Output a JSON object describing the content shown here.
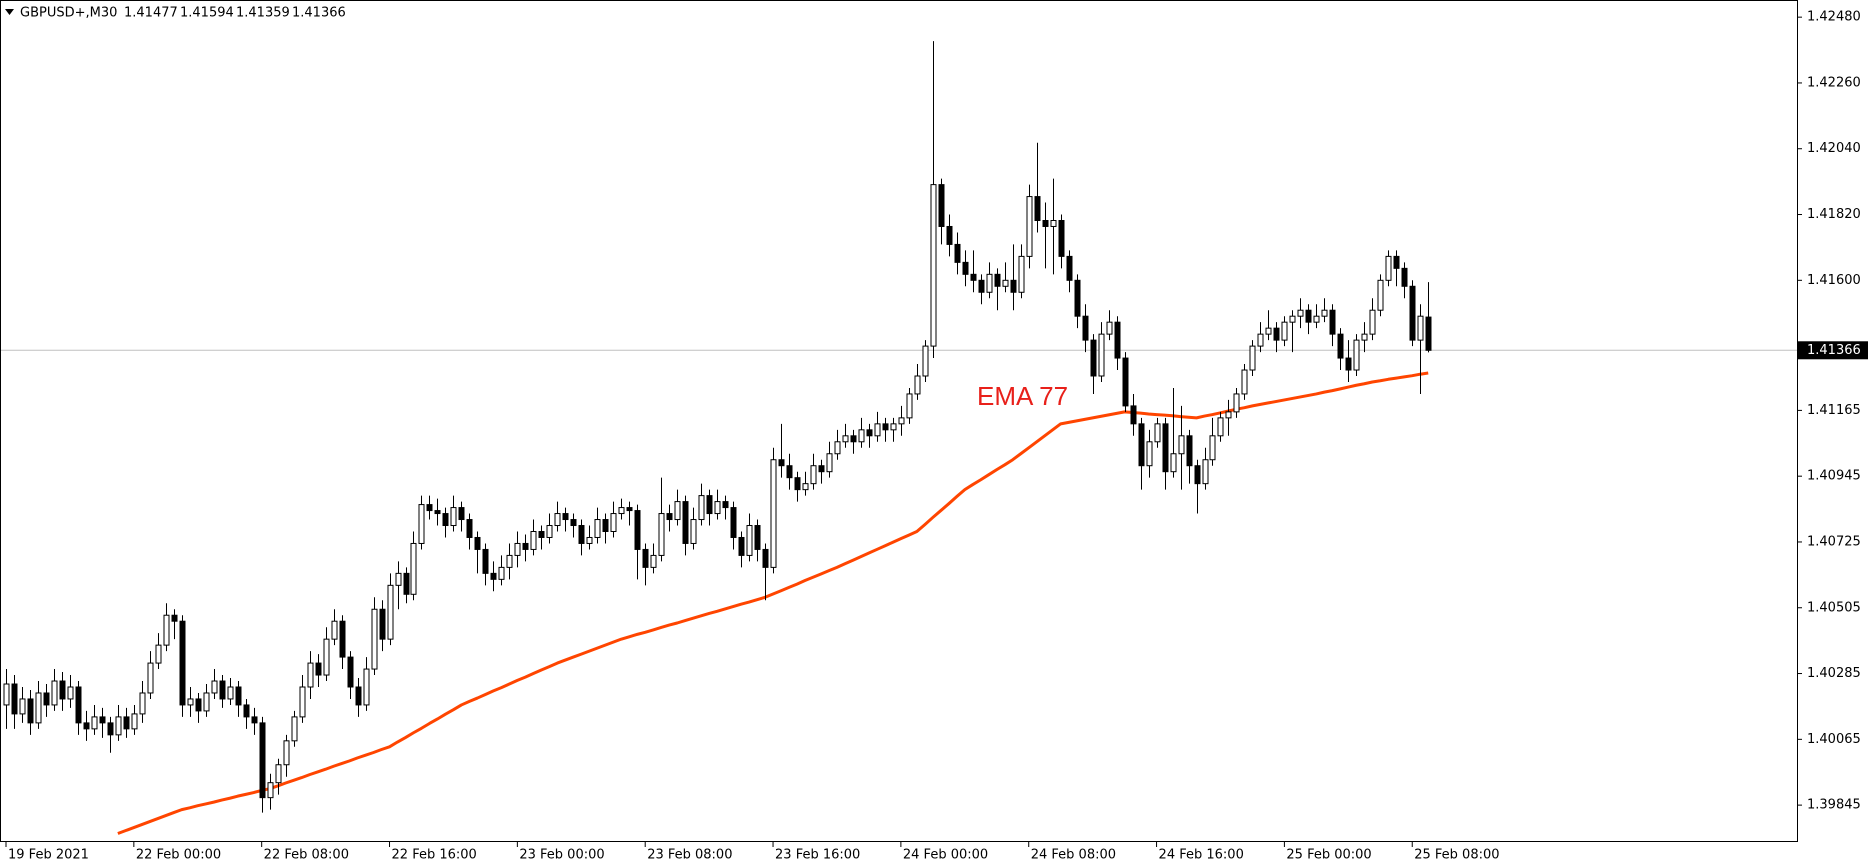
{
  "chart_data": {
    "type": "candlestick",
    "symbol": "GBPUSD+,M30",
    "up_color": "#ffffff",
    "down_color": "#000000",
    "last_price_line": true,
    "candles": [
      [
        1.4018,
        1.403,
        1.401,
        1.4025
      ],
      [
        1.4025,
        1.4028,
        1.401,
        1.4015
      ],
      [
        1.4015,
        1.4024,
        1.4012,
        1.402
      ],
      [
        1.402,
        1.4023,
        1.4008,
        1.4012
      ],
      [
        1.4012,
        1.4026,
        1.401,
        1.4022
      ],
      [
        1.4022,
        1.4025,
        1.4014,
        1.4018
      ],
      [
        1.4018,
        1.403,
        1.4016,
        1.4026
      ],
      [
        1.4026,
        1.4029,
        1.4016,
        1.402
      ],
      [
        1.402,
        1.4028,
        1.4017,
        1.4024
      ],
      [
        1.4024,
        1.4026,
        1.4008,
        1.4012
      ],
      [
        1.4012,
        1.4016,
        1.4006,
        1.401
      ],
      [
        1.401,
        1.4018,
        1.4008,
        1.4014
      ],
      [
        1.4014,
        1.4017,
        1.4007,
        1.4012
      ],
      [
        1.4012,
        1.4014,
        1.4002,
        1.4008
      ],
      [
        1.4008,
        1.4018,
        1.4006,
        1.4014
      ],
      [
        1.4014,
        1.4017,
        1.4007,
        1.401
      ],
      [
        1.401,
        1.4018,
        1.4008,
        1.4015
      ],
      [
        1.4015,
        1.4026,
        1.4012,
        1.4022
      ],
      [
        1.4022,
        1.4036,
        1.402,
        1.4032
      ],
      [
        1.4032,
        1.4042,
        1.403,
        1.4038
      ],
      [
        1.4038,
        1.4052,
        1.4036,
        1.4048
      ],
      [
        1.4048,
        1.405,
        1.404,
        1.4046
      ],
      [
        1.4046,
        1.4048,
        1.4014,
        1.4018
      ],
      [
        1.4018,
        1.4024,
        1.4014,
        1.402
      ],
      [
        1.402,
        1.4022,
        1.4012,
        1.4016
      ],
      [
        1.4016,
        1.4025,
        1.4014,
        1.4022
      ],
      [
        1.4022,
        1.403,
        1.402,
        1.4026
      ],
      [
        1.4026,
        1.4028,
        1.4017,
        1.402
      ],
      [
        1.402,
        1.4027,
        1.4018,
        1.4024
      ],
      [
        1.4024,
        1.4026,
        1.4014,
        1.4018
      ],
      [
        1.4018,
        1.402,
        1.401,
        1.4014
      ],
      [
        1.4014,
        1.4017,
        1.4008,
        1.4012
      ],
      [
        1.4012,
        1.4014,
        1.3982,
        1.3987
      ],
      [
        1.3987,
        1.3995,
        1.3983,
        1.3992
      ],
      [
        1.3992,
        1.4,
        1.3988,
        1.3998
      ],
      [
        1.3998,
        1.4008,
        1.3994,
        1.4006
      ],
      [
        1.4006,
        1.4016,
        1.4004,
        1.4014
      ],
      [
        1.4014,
        1.4028,
        1.4012,
        1.4024
      ],
      [
        1.4024,
        1.4036,
        1.402,
        1.4032
      ],
      [
        1.4032,
        1.4035,
        1.4024,
        1.4028
      ],
      [
        1.4028,
        1.4044,
        1.4026,
        1.404
      ],
      [
        1.404,
        1.405,
        1.4038,
        1.4046
      ],
      [
        1.4046,
        1.4048,
        1.403,
        1.4034
      ],
      [
        1.4034,
        1.4036,
        1.402,
        1.4024
      ],
      [
        1.4024,
        1.4027,
        1.4014,
        1.4018
      ],
      [
        1.4018,
        1.4034,
        1.4016,
        1.403
      ],
      [
        1.403,
        1.4054,
        1.4028,
        1.405
      ],
      [
        1.405,
        1.4053,
        1.4036,
        1.404
      ],
      [
        1.404,
        1.4062,
        1.4038,
        1.4058
      ],
      [
        1.4058,
        1.4066,
        1.405,
        1.4062
      ],
      [
        1.4062,
        1.4064,
        1.4052,
        1.4055
      ],
      [
        1.4055,
        1.4076,
        1.4053,
        1.4072
      ],
      [
        1.4072,
        1.4088,
        1.407,
        1.4085
      ],
      [
        1.4085,
        1.4088,
        1.408,
        1.4083
      ],
      [
        1.4083,
        1.4087,
        1.4078,
        1.4082
      ],
      [
        1.4082,
        1.4084,
        1.4074,
        1.4078
      ],
      [
        1.4078,
        1.4088,
        1.4076,
        1.4084
      ],
      [
        1.4084,
        1.4086,
        1.4076,
        1.408
      ],
      [
        1.408,
        1.4082,
        1.407,
        1.4074
      ],
      [
        1.4074,
        1.4076,
        1.4062,
        1.407
      ],
      [
        1.407,
        1.4072,
        1.4058,
        1.4062
      ],
      [
        1.4062,
        1.4066,
        1.4056,
        1.406
      ],
      [
        1.406,
        1.4068,
        1.4058,
        1.4064
      ],
      [
        1.4064,
        1.4072,
        1.406,
        1.4068
      ],
      [
        1.4068,
        1.4076,
        1.4064,
        1.4072
      ],
      [
        1.4072,
        1.4075,
        1.4066,
        1.407
      ],
      [
        1.407,
        1.408,
        1.4068,
        1.4076
      ],
      [
        1.4076,
        1.4078,
        1.407,
        1.4074
      ],
      [
        1.4074,
        1.4082,
        1.4072,
        1.4078
      ],
      [
        1.4078,
        1.4086,
        1.4076,
        1.4082
      ],
      [
        1.4082,
        1.4084,
        1.4076,
        1.408
      ],
      [
        1.408,
        1.4082,
        1.4074,
        1.4078
      ],
      [
        1.4078,
        1.408,
        1.4068,
        1.4072
      ],
      [
        1.4072,
        1.4078,
        1.407,
        1.4074
      ],
      [
        1.4074,
        1.4084,
        1.4072,
        1.408
      ],
      [
        1.408,
        1.4082,
        1.4072,
        1.4076
      ],
      [
        1.4076,
        1.4086,
        1.4074,
        1.4082
      ],
      [
        1.4082,
        1.4087,
        1.408,
        1.4084
      ],
      [
        1.4084,
        1.4086,
        1.4078,
        1.4083
      ],
      [
        1.4083,
        1.4085,
        1.406,
        1.407
      ],
      [
        1.407,
        1.4072,
        1.4058,
        1.4064
      ],
      [
        1.4064,
        1.4072,
        1.4062,
        1.4068
      ],
      [
        1.4068,
        1.4094,
        1.4066,
        1.4082
      ],
      [
        1.4082,
        1.4085,
        1.4076,
        1.408
      ],
      [
        1.408,
        1.409,
        1.4078,
        1.4086
      ],
      [
        1.4086,
        1.4088,
        1.4068,
        1.4072
      ],
      [
        1.4072,
        1.4084,
        1.407,
        1.408
      ],
      [
        1.408,
        1.4092,
        1.4078,
        1.4088
      ],
      [
        1.4088,
        1.409,
        1.4078,
        1.4082
      ],
      [
        1.4082,
        1.409,
        1.408,
        1.4086
      ],
      [
        1.4086,
        1.4088,
        1.408,
        1.4084
      ],
      [
        1.4084,
        1.4086,
        1.407,
        1.4074
      ],
      [
        1.4074,
        1.4076,
        1.4064,
        1.4068
      ],
      [
        1.4068,
        1.4082,
        1.4066,
        1.4078
      ],
      [
        1.4078,
        1.408,
        1.4066,
        1.407
      ],
      [
        1.407,
        1.4072,
        1.4053,
        1.4064
      ],
      [
        1.4064,
        1.4104,
        1.4062,
        1.41
      ],
      [
        1.41,
        1.4112,
        1.4094,
        1.4098
      ],
      [
        1.4098,
        1.4102,
        1.409,
        1.4094
      ],
      [
        1.4094,
        1.4096,
        1.4086,
        1.409
      ],
      [
        1.409,
        1.4096,
        1.4088,
        1.4092
      ],
      [
        1.4092,
        1.4102,
        1.409,
        1.4098
      ],
      [
        1.4098,
        1.41,
        1.4092,
        1.4096
      ],
      [
        1.4096,
        1.4106,
        1.4094,
        1.4102
      ],
      [
        1.4102,
        1.411,
        1.41,
        1.4106
      ],
      [
        1.4106,
        1.4112,
        1.4104,
        1.4108
      ],
      [
        1.4108,
        1.411,
        1.4102,
        1.4106
      ],
      [
        1.4106,
        1.4114,
        1.4104,
        1.411
      ],
      [
        1.411,
        1.4112,
        1.4104,
        1.4108
      ],
      [
        1.4108,
        1.4116,
        1.4106,
        1.4112
      ],
      [
        1.4112,
        1.4114,
        1.4106,
        1.411
      ],
      [
        1.411,
        1.4114,
        1.4106,
        1.4112
      ],
      [
        1.4112,
        1.4118,
        1.4108,
        1.4114
      ],
      [
        1.4114,
        1.4124,
        1.4112,
        1.4122
      ],
      [
        1.4122,
        1.4132,
        1.412,
        1.4128
      ],
      [
        1.4128,
        1.414,
        1.4126,
        1.4138
      ],
      [
        1.4138,
        1.424,
        1.4134,
        1.4192
      ],
      [
        1.4192,
        1.4194,
        1.4172,
        1.4178
      ],
      [
        1.4178,
        1.4182,
        1.4168,
        1.4172
      ],
      [
        1.4172,
        1.4176,
        1.4162,
        1.4166
      ],
      [
        1.4166,
        1.417,
        1.4158,
        1.4162
      ],
      [
        1.4162,
        1.417,
        1.4156,
        1.416
      ],
      [
        1.416,
        1.4162,
        1.4152,
        1.4156
      ],
      [
        1.4156,
        1.4166,
        1.4154,
        1.4162
      ],
      [
        1.4162,
        1.4164,
        1.415,
        1.4158
      ],
      [
        1.4158,
        1.4166,
        1.4156,
        1.416
      ],
      [
        1.416,
        1.4172,
        1.415,
        1.4156
      ],
      [
        1.4156,
        1.4172,
        1.4154,
        1.4168
      ],
      [
        1.4168,
        1.4192,
        1.4164,
        1.4188
      ],
      [
        1.4188,
        1.4206,
        1.4176,
        1.418
      ],
      [
        1.418,
        1.4186,
        1.4164,
        1.4178
      ],
      [
        1.4178,
        1.4194,
        1.4162,
        1.418
      ],
      [
        1.418,
        1.4182,
        1.4164,
        1.4168
      ],
      [
        1.4168,
        1.417,
        1.4156,
        1.416
      ],
      [
        1.416,
        1.4162,
        1.4144,
        1.4148
      ],
      [
        1.4148,
        1.4152,
        1.4136,
        1.414
      ],
      [
        1.414,
        1.4142,
        1.4122,
        1.4128
      ],
      [
        1.4128,
        1.4146,
        1.4126,
        1.4142
      ],
      [
        1.4142,
        1.415,
        1.414,
        1.4146
      ],
      [
        1.4146,
        1.4148,
        1.413,
        1.4134
      ],
      [
        1.4134,
        1.4136,
        1.4116,
        1.4118
      ],
      [
        1.4118,
        1.4122,
        1.4108,
        1.4112
      ],
      [
        1.4112,
        1.4114,
        1.409,
        1.4098
      ],
      [
        1.4098,
        1.411,
        1.4094,
        1.4106
      ],
      [
        1.4106,
        1.4114,
        1.4104,
        1.4112
      ],
      [
        1.4112,
        1.4114,
        1.409,
        1.4096
      ],
      [
        1.4096,
        1.4124,
        1.4094,
        1.4102
      ],
      [
        1.4102,
        1.4118,
        1.409,
        1.4108
      ],
      [
        1.4108,
        1.411,
        1.4092,
        1.4098
      ],
      [
        1.4098,
        1.41,
        1.4082,
        1.4092
      ],
      [
        1.4092,
        1.4104,
        1.409,
        1.41
      ],
      [
        1.41,
        1.4114,
        1.4098,
        1.4108
      ],
      [
        1.4108,
        1.4116,
        1.4106,
        1.4114
      ],
      [
        1.4114,
        1.412,
        1.4108,
        1.4116
      ],
      [
        1.4116,
        1.4124,
        1.4114,
        1.4122
      ],
      [
        1.4122,
        1.4132,
        1.412,
        1.413
      ],
      [
        1.413,
        1.414,
        1.4128,
        1.4138
      ],
      [
        1.4138,
        1.4146,
        1.4136,
        1.4142
      ],
      [
        1.4142,
        1.415,
        1.414,
        1.4144
      ],
      [
        1.4144,
        1.4146,
        1.4136,
        1.414
      ],
      [
        1.414,
        1.4148,
        1.4138,
        1.4146
      ],
      [
        1.4146,
        1.415,
        1.4136,
        1.4148
      ],
      [
        1.4148,
        1.4154,
        1.4144,
        1.415
      ],
      [
        1.415,
        1.4152,
        1.4142,
        1.4146
      ],
      [
        1.4146,
        1.4152,
        1.4144,
        1.4148
      ],
      [
        1.4148,
        1.4154,
        1.4146,
        1.415
      ],
      [
        1.415,
        1.4152,
        1.4138,
        1.4142
      ],
      [
        1.4142,
        1.4144,
        1.413,
        1.4134
      ],
      [
        1.4134,
        1.414,
        1.4126,
        1.413
      ],
      [
        1.413,
        1.4142,
        1.4128,
        1.414
      ],
      [
        1.414,
        1.4146,
        1.4136,
        1.4142
      ],
      [
        1.4142,
        1.4154,
        1.414,
        1.415
      ],
      [
        1.415,
        1.4162,
        1.4148,
        1.416
      ],
      [
        1.416,
        1.417,
        1.4158,
        1.4168
      ],
      [
        1.4168,
        1.417,
        1.4158,
        1.4164
      ],
      [
        1.4164,
        1.4166,
        1.4154,
        1.4158
      ],
      [
        1.4158,
        1.416,
        1.4138,
        1.414
      ],
      [
        1.414,
        1.4152,
        1.4122,
        1.4148
      ],
      [
        1.41477,
        1.41594,
        1.41359,
        1.41366
      ]
    ],
    "series": [
      {
        "name": "EMA 77",
        "color": "#ff4500",
        "values": [
          null,
          null,
          null,
          null,
          null,
          null,
          null,
          null,
          null,
          null,
          null,
          null,
          null,
          null,
          1.3975,
          1.3976,
          1.3977,
          1.3978,
          1.3979,
          1.398,
          1.3981,
          1.3982,
          1.3983,
          1.39836,
          1.39843,
          1.39849,
          1.39855,
          1.39862,
          1.39868,
          1.39875,
          1.39881,
          1.39887,
          1.39894,
          1.399,
          1.39909,
          1.39919,
          1.39928,
          1.39937,
          1.39947,
          1.39956,
          1.39965,
          1.39975,
          1.39984,
          1.39993,
          1.40003,
          1.40012,
          1.40021,
          1.40031,
          1.4004,
          1.40056,
          1.40071,
          1.40087,
          1.40102,
          1.40118,
          1.40133,
          1.40149,
          1.40164,
          1.4018,
          1.40192,
          1.40203,
          1.40215,
          1.40227,
          1.40238,
          1.4025,
          1.40262,
          1.40273,
          1.40285,
          1.40297,
          1.40308,
          1.4032,
          1.4033,
          1.4034,
          1.4035,
          1.4036,
          1.4037,
          1.4038,
          1.4039,
          1.404,
          1.40408,
          1.40416,
          1.40423,
          1.40431,
          1.40439,
          1.40447,
          1.40454,
          1.40462,
          1.4047,
          1.40478,
          1.40486,
          1.40493,
          1.40501,
          1.40509,
          1.40517,
          1.40524,
          1.40532,
          1.4054,
          1.40551,
          1.40562,
          1.40573,
          1.40584,
          1.40596,
          1.40607,
          1.40618,
          1.40629,
          1.4064,
          1.40652,
          1.40664,
          1.40676,
          1.40688,
          1.407,
          1.40712,
          1.40724,
          1.40736,
          1.40748,
          1.4076,
          1.40783,
          1.40807,
          1.4083,
          1.40853,
          1.40877,
          1.409,
          1.40917,
          1.40933,
          1.4095,
          1.40967,
          1.40983,
          1.41,
          1.4102,
          1.4104,
          1.4106,
          1.4108,
          1.411,
          1.4112,
          1.41125,
          1.4113,
          1.41135,
          1.4114,
          1.41145,
          1.4115,
          1.41155,
          1.4116,
          1.41158,
          1.41156,
          1.41153,
          1.41151,
          1.41149,
          1.41147,
          1.41144,
          1.41142,
          1.4114,
          1.41146,
          1.41151,
          1.41157,
          1.41163,
          1.41169,
          1.41174,
          1.4118,
          1.41185,
          1.4119,
          1.41195,
          1.412,
          1.41205,
          1.4121,
          1.41215,
          1.4122,
          1.41226,
          1.41231,
          1.41237,
          1.41243,
          1.41249,
          1.41254,
          1.4126,
          1.41264,
          1.41269,
          1.41273,
          1.41277,
          1.41281,
          1.41286,
          1.4129
        ]
      }
    ],
    "xticks": [
      {
        "value": 0,
        "label": "19 Feb 2021"
      },
      {
        "value": 16,
        "label": "22 Feb 00:00"
      },
      {
        "value": 32,
        "label": "22 Feb 08:00"
      },
      {
        "value": 48,
        "label": "22 Feb 16:00"
      },
      {
        "value": 64,
        "label": "23 Feb 00:00"
      },
      {
        "value": 80,
        "label": "23 Feb 08:00"
      },
      {
        "value": 96,
        "label": "23 Feb 16:00"
      },
      {
        "value": 112,
        "label": "24 Feb 00:00"
      },
      {
        "value": 128,
        "label": "24 Feb 08:00"
      },
      {
        "value": 144,
        "label": "24 Feb 16:00"
      },
      {
        "value": 160,
        "label": "25 Feb 00:00"
      },
      {
        "value": 176,
        "label": "25 Feb 08:00"
      }
    ],
    "ylim": [
      1.39725,
      1.42524
    ],
    "yticks": [
      {
        "value": 1.4248,
        "label": "1.42480"
      },
      {
        "value": 1.4226,
        "label": "1.42260"
      },
      {
        "value": 1.4204,
        "label": "1.42040"
      },
      {
        "value": 1.4182,
        "label": "1.41820"
      },
      {
        "value": 1.416,
        "label": "1.41600"
      },
      1.41165,
      1.40945,
      1.40725,
      1.40505,
      1.40285,
      1.40065,
      1.39845
    ]
  }
}
